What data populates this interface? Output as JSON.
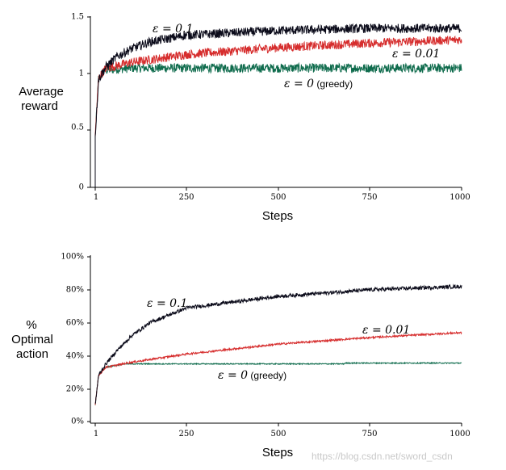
{
  "watermark": "https://blog.csdn.net/sword_csdn",
  "colors": {
    "greedy": "#0e6b4c",
    "eps001": "#d62d2d",
    "eps01": "#0b0b1a"
  },
  "chart_data": [
    {
      "type": "line",
      "id": "reward",
      "ylabel": [
        "Average",
        "reward"
      ],
      "xlabel": "Steps",
      "xlim": [
        1,
        1000
      ],
      "ylim": [
        0,
        1.5
      ],
      "xticks": [
        {
          "value": 1,
          "label": "1"
        },
        {
          "value": 250,
          "label": "250"
        },
        {
          "value": 500,
          "label": "500"
        },
        {
          "value": 750,
          "label": "750"
        },
        {
          "value": 1000,
          "label": "1000"
        }
      ],
      "yticks": [
        {
          "value": 0,
          "label": "0"
        },
        {
          "value": 0.5,
          "label": "0.5"
        },
        {
          "value": 1,
          "label": "1"
        },
        {
          "value": 1.5,
          "label": "1.5"
        }
      ],
      "series": [
        {
          "name": "greedy",
          "annotation": {
            "main": "ε = 0",
            "suffix": " (greedy)"
          },
          "start": 0.45,
          "points": [
            [
              1,
              0.45
            ],
            [
              10,
              0.95
            ],
            [
              25,
              1.03
            ],
            [
              100,
              1.05
            ],
            [
              1000,
              1.05
            ]
          ],
          "noise": 0.025
        },
        {
          "name": "eps001",
          "annotation": {
            "main": "ε = 0.01",
            "suffix": ""
          },
          "start": 0.45,
          "points": [
            [
              1,
              0.45
            ],
            [
              10,
              0.96
            ],
            [
              30,
              1.05
            ],
            [
              100,
              1.1
            ],
            [
              250,
              1.17
            ],
            [
              500,
              1.23
            ],
            [
              750,
              1.27
            ],
            [
              1000,
              1.3
            ]
          ],
          "noise": 0.025
        },
        {
          "name": "eps01",
          "annotation": {
            "main": "ε = 0.1",
            "suffix": ""
          },
          "start": 0.45,
          "points": [
            [
              1,
              0.45
            ],
            [
              10,
              0.95
            ],
            [
              30,
              1.06
            ],
            [
              60,
              1.15
            ],
            [
              100,
              1.22
            ],
            [
              150,
              1.28
            ],
            [
              250,
              1.34
            ],
            [
              500,
              1.38
            ],
            [
              750,
              1.4
            ],
            [
              1000,
              1.4
            ]
          ],
          "noise": 0.025
        }
      ]
    },
    {
      "type": "line",
      "id": "optimal",
      "ylabel": [
        "%",
        "Optimal",
        "action"
      ],
      "xlabel": "Steps",
      "xlim": [
        1,
        1000
      ],
      "ylim": [
        0,
        100
      ],
      "xticks": [
        {
          "value": 1,
          "label": "1"
        },
        {
          "value": 250,
          "label": "250"
        },
        {
          "value": 500,
          "label": "500"
        },
        {
          "value": 750,
          "label": "750"
        },
        {
          "value": 1000,
          "label": "1000"
        }
      ],
      "yticks": [
        {
          "value": 0,
          "label": "0%"
        },
        {
          "value": 20,
          "label": "20%"
        },
        {
          "value": 40,
          "label": "40%"
        },
        {
          "value": 60,
          "label": "60%"
        },
        {
          "value": 80,
          "label": "80%"
        },
        {
          "value": 100,
          "label": "100%"
        }
      ],
      "series": [
        {
          "name": "greedy",
          "annotation": {
            "main": "ε = 0",
            "suffix": " (greedy)"
          },
          "points": [
            [
              1,
              10
            ],
            [
              10,
              28
            ],
            [
              30,
              33
            ],
            [
              80,
              35
            ],
            [
              680,
              35
            ],
            [
              680,
              35.5
            ],
            [
              1000,
              35.5
            ]
          ],
          "noise": 0.2
        },
        {
          "name": "eps001",
          "annotation": {
            "main": "ε = 0.01",
            "suffix": ""
          },
          "points": [
            [
              1,
              10
            ],
            [
              10,
              28
            ],
            [
              30,
              33
            ],
            [
              100,
              36
            ],
            [
              250,
              41
            ],
            [
              500,
              47
            ],
            [
              750,
              51
            ],
            [
              1000,
              54
            ]
          ],
          "noise": 0.35
        },
        {
          "name": "eps01",
          "annotation": {
            "main": "ε = 0.1",
            "suffix": ""
          },
          "points": [
            [
              1,
              10
            ],
            [
              10,
              28
            ],
            [
              30,
              35
            ],
            [
              60,
              43
            ],
            [
              100,
              52
            ],
            [
              150,
              60
            ],
            [
              250,
              69
            ],
            [
              500,
              76
            ],
            [
              750,
              80
            ],
            [
              1000,
              82
            ]
          ],
          "noise": 0.7
        }
      ]
    }
  ]
}
